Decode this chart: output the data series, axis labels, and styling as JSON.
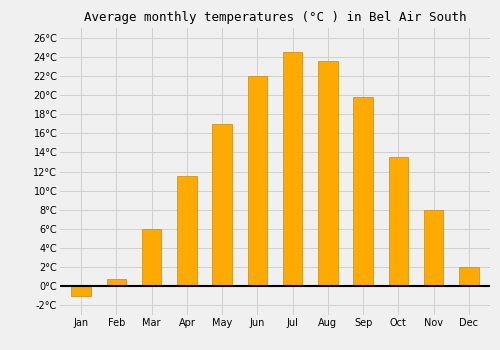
{
  "title": "Average monthly temperatures (°C ) in Bel Air South",
  "months": [
    "Jan",
    "Feb",
    "Mar",
    "Apr",
    "May",
    "Jun",
    "Jul",
    "Aug",
    "Sep",
    "Oct",
    "Nov",
    "Dec"
  ],
  "values": [
    -1.0,
    0.8,
    6.0,
    11.5,
    17.0,
    22.0,
    24.5,
    23.5,
    19.8,
    13.5,
    8.0,
    2.0
  ],
  "bar_color": "#FFAA00",
  "bar_edge_color": "#CC8800",
  "ylim": [
    -3,
    27
  ],
  "yticks": [
    -2,
    0,
    2,
    4,
    6,
    8,
    10,
    12,
    14,
    16,
    18,
    20,
    22,
    24,
    26
  ],
  "background_color": "#f0f0f0",
  "grid_color": "#d0d0d0",
  "title_fontsize": 9,
  "tick_fontsize": 7,
  "bar_width": 0.55
}
